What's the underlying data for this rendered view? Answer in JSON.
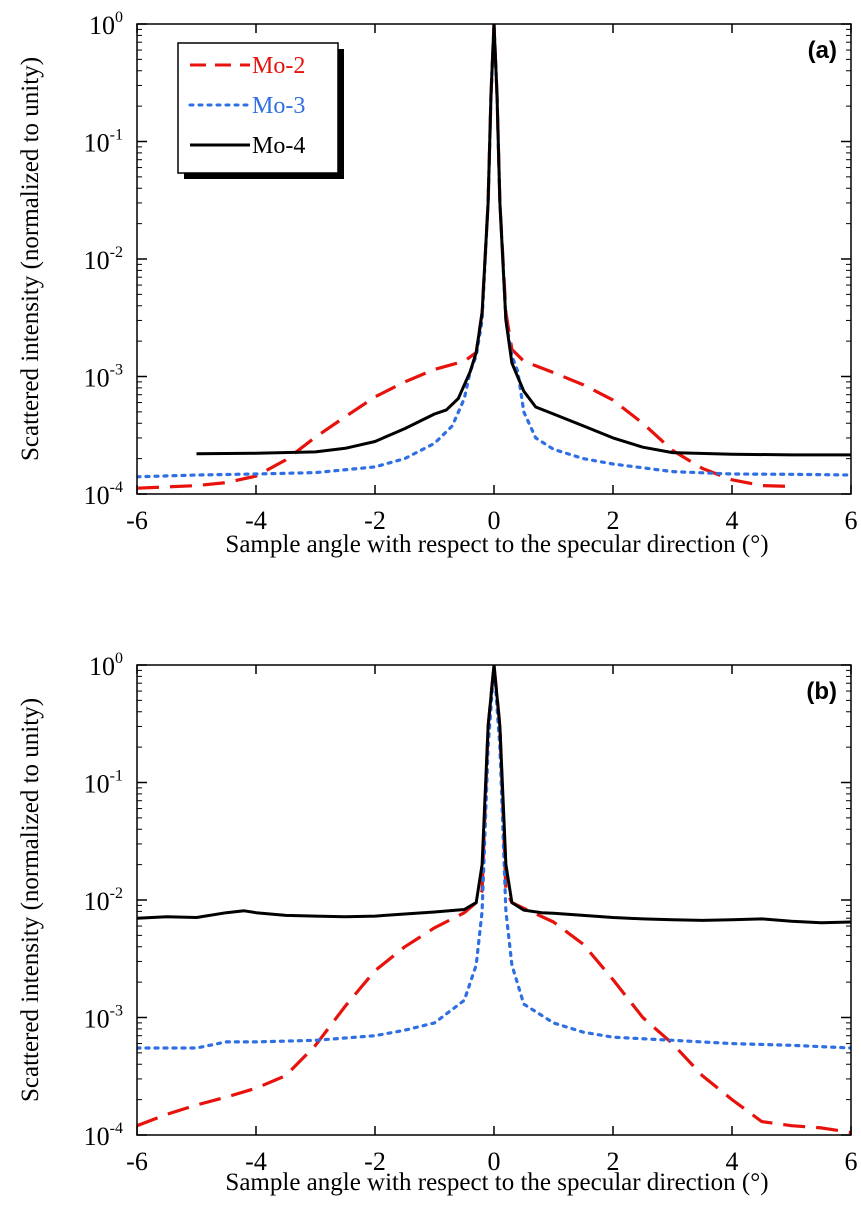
{
  "chart_data": [
    {
      "type": "line",
      "panel_label": "(a)",
      "xlabel": "Sample angle with respect to the specular direction (°)",
      "ylabel": "Scattered intensity (normalized to unity)",
      "xlim": [
        -6,
        6
      ],
      "ylim": [
        0.0001,
        1
      ],
      "yscale": "log",
      "x_ticks": [
        -6,
        -4,
        -2,
        0,
        2,
        4,
        6
      ],
      "y_ticks": [
        {
          "value": 1,
          "base": "10",
          "exp": "0"
        },
        {
          "value": 0.1,
          "base": "10",
          "exp": "-1"
        },
        {
          "value": 0.01,
          "base": "10",
          "exp": "-2"
        },
        {
          "value": 0.001,
          "base": "10",
          "exp": "-3"
        },
        {
          "value": 0.0001,
          "base": "10",
          "exp": "-4"
        }
      ],
      "grid": false,
      "legend_position": "top-left",
      "series": [
        {
          "name": "Mo-2",
          "color": "#e8120c",
          "style": "dashed",
          "points": [
            [
              -6,
              0.000112
            ],
            [
              -5,
              0.000118
            ],
            [
              -4.5,
              0.000125
            ],
            [
              -4,
              0.000142
            ],
            [
              -3.5,
              0.000195
            ],
            [
              -3,
              0.000305
            ],
            [
              -2.5,
              0.000455
            ],
            [
              -2,
              0.00067
            ],
            [
              -1.5,
              0.0009
            ],
            [
              -1,
              0.00115
            ],
            [
              -0.5,
              0.00135
            ],
            [
              -0.3,
              0.0016
            ],
            [
              -0.2,
              0.0035
            ],
            [
              -0.1,
              0.03
            ],
            [
              -0.05,
              0.25
            ],
            [
              0,
              1
            ],
            [
              0.05,
              0.25
            ],
            [
              0.1,
              0.03
            ],
            [
              0.2,
              0.0035
            ],
            [
              0.3,
              0.0017
            ],
            [
              0.5,
              0.00135
            ],
            [
              1,
              0.00108
            ],
            [
              1.5,
              0.00085
            ],
            [
              2,
              0.00063
            ],
            [
              2.5,
              0.0004
            ],
            [
              3,
              0.000235
            ],
            [
              3.5,
              0.000165
            ],
            [
              4,
              0.000132
            ],
            [
              4.5,
              0.000118
            ],
            [
              5,
              0.000116
            ]
          ]
        },
        {
          "name": "Mo-3",
          "color": "#2f6fe3",
          "style": "dotted",
          "points": [
            [
              -6,
              0.00014
            ],
            [
              -5,
              0.000145
            ],
            [
              -4,
              0.000148
            ],
            [
              -3,
              0.000152
            ],
            [
              -2,
              0.00017
            ],
            [
              -1.5,
              0.0002
            ],
            [
              -1,
              0.00027
            ],
            [
              -0.7,
              0.00038
            ],
            [
              -0.5,
              0.00065
            ],
            [
              -0.4,
              0.0011
            ],
            [
              -0.3,
              0.0015
            ],
            [
              -0.2,
              0.003
            ],
            [
              -0.1,
              0.03
            ],
            [
              -0.05,
              0.25
            ],
            [
              0,
              1
            ],
            [
              0.05,
              0.25
            ],
            [
              0.1,
              0.03
            ],
            [
              0.2,
              0.003
            ],
            [
              0.3,
              0.0015
            ],
            [
              0.4,
              0.0011
            ],
            [
              0.5,
              0.0005
            ],
            [
              0.7,
              0.0003
            ],
            [
              1,
              0.00024
            ],
            [
              1.5,
              0.0002
            ],
            [
              2,
              0.00018
            ],
            [
              3,
              0.000155
            ],
            [
              4,
              0.000148
            ],
            [
              5,
              0.000147
            ],
            [
              6,
              0.000145
            ]
          ]
        },
        {
          "name": "Mo-4",
          "color": "#000000",
          "style": "solid",
          "points": [
            [
              -5,
              0.00022
            ],
            [
              -4,
              0.000222
            ],
            [
              -3,
              0.000228
            ],
            [
              -2.5,
              0.000245
            ],
            [
              -2,
              0.00028
            ],
            [
              -1.5,
              0.00036
            ],
            [
              -1,
              0.00048
            ],
            [
              -0.8,
              0.00052
            ],
            [
              -0.6,
              0.00065
            ],
            [
              -0.4,
              0.0011
            ],
            [
              -0.3,
              0.0016
            ],
            [
              -0.2,
              0.0035
            ],
            [
              -0.1,
              0.03
            ],
            [
              -0.05,
              0.25
            ],
            [
              0,
              1
            ],
            [
              0.05,
              0.25
            ],
            [
              0.1,
              0.03
            ],
            [
              0.2,
              0.003
            ],
            [
              0.3,
              0.0013
            ],
            [
              0.5,
              0.00075
            ],
            [
              0.7,
              0.00055
            ],
            [
              1,
              0.00048
            ],
            [
              1.5,
              0.00038
            ],
            [
              2,
              0.0003
            ],
            [
              2.5,
              0.00025
            ],
            [
              3,
              0.000225
            ],
            [
              4,
              0.000218
            ],
            [
              5,
              0.000215
            ],
            [
              6,
              0.000215
            ]
          ]
        }
      ]
    },
    {
      "type": "line",
      "panel_label": "(b)",
      "xlabel": "Sample angle with respect to the specular direction (°)",
      "ylabel": "Scattered intensity (normalized to unity)",
      "xlim": [
        -6,
        6
      ],
      "ylim": [
        0.0001,
        1
      ],
      "yscale": "log",
      "x_ticks": [
        -6,
        -4,
        -2,
        0,
        2,
        4,
        6
      ],
      "y_ticks": [
        {
          "value": 1,
          "base": "10",
          "exp": "0"
        },
        {
          "value": 0.1,
          "base": "10",
          "exp": "-1"
        },
        {
          "value": 0.01,
          "base": "10",
          "exp": "-2"
        },
        {
          "value": 0.001,
          "base": "10",
          "exp": "-3"
        },
        {
          "value": 0.0001,
          "base": "10",
          "exp": "-4"
        }
      ],
      "grid": false,
      "series": [
        {
          "name": "Mo-2",
          "color": "#e8120c",
          "style": "dashed",
          "points": [
            [
              -6,
              0.00012
            ],
            [
              -5.5,
              0.00015
            ],
            [
              -5,
              0.00018
            ],
            [
              -4.5,
              0.00021
            ],
            [
              -4,
              0.00025
            ],
            [
              -3.5,
              0.00032
            ],
            [
              -3,
              0.00058
            ],
            [
              -2.5,
              0.00125
            ],
            [
              -2,
              0.0025
            ],
            [
              -1.5,
              0.004
            ],
            [
              -1,
              0.0058
            ],
            [
              -0.5,
              0.0078
            ],
            [
              -0.3,
              0.0095
            ],
            [
              -0.2,
              0.012
            ],
            [
              -0.1,
              0.3
            ],
            [
              0,
              1
            ],
            [
              0.1,
              0.3
            ],
            [
              0.2,
              0.012
            ],
            [
              0.3,
              0.0095
            ],
            [
              0.5,
              0.0085
            ],
            [
              1,
              0.0065
            ],
            [
              1.5,
              0.0042
            ],
            [
              2,
              0.0021
            ],
            [
              2.5,
              0.001
            ],
            [
              3,
              0.0006
            ],
            [
              3.5,
              0.00032
            ],
            [
              4,
              0.0002
            ],
            [
              4.5,
              0.00013
            ],
            [
              5,
              0.00012
            ],
            [
              5.5,
              0.000115
            ],
            [
              6,
              0.000105
            ]
          ]
        },
        {
          "name": "Mo-3",
          "color": "#2f6fe3",
          "style": "dotted",
          "points": [
            [
              -6,
              0.00055
            ],
            [
              -5,
              0.00055
            ],
            [
              -4.5,
              0.00062
            ],
            [
              -4,
              0.00062
            ],
            [
              -3,
              0.00064
            ],
            [
              -2,
              0.0007
            ],
            [
              -1.5,
              0.00078
            ],
            [
              -1,
              0.0009
            ],
            [
              -0.5,
              0.0014
            ],
            [
              -0.3,
              0.0028
            ],
            [
              -0.2,
              0.008
            ],
            [
              -0.1,
              0.2
            ],
            [
              0,
              1
            ],
            [
              0.1,
              0.2
            ],
            [
              0.2,
              0.008
            ],
            [
              0.3,
              0.0028
            ],
            [
              0.5,
              0.0013
            ],
            [
              1,
              0.0009
            ],
            [
              1.5,
              0.00075
            ],
            [
              2,
              0.00068
            ],
            [
              3,
              0.00064
            ],
            [
              4,
              0.0006
            ],
            [
              5,
              0.00058
            ],
            [
              6,
              0.00055
            ]
          ]
        },
        {
          "name": "Mo-4",
          "color": "#000000",
          "style": "solid",
          "points": [
            [
              -6,
              0.007
            ],
            [
              -5.5,
              0.0072
            ],
            [
              -5,
              0.0071
            ],
            [
              -4.5,
              0.0078
            ],
            [
              -4.2,
              0.0081
            ],
            [
              -4,
              0.0078
            ],
            [
              -3.5,
              0.0074
            ],
            [
              -3,
              0.0073
            ],
            [
              -2.5,
              0.0072
            ],
            [
              -2,
              0.0073
            ],
            [
              -1.5,
              0.0076
            ],
            [
              -1,
              0.0079
            ],
            [
              -0.5,
              0.0083
            ],
            [
              -0.3,
              0.0095
            ],
            [
              -0.2,
              0.02
            ],
            [
              -0.1,
              0.3
            ],
            [
              0,
              1
            ],
            [
              0.1,
              0.3
            ],
            [
              0.2,
              0.02
            ],
            [
              0.3,
              0.0095
            ],
            [
              0.5,
              0.0082
            ],
            [
              0.8,
              0.0078
            ],
            [
              1,
              0.0077
            ],
            [
              1.5,
              0.0074
            ],
            [
              2,
              0.0071
            ],
            [
              2.5,
              0.0069
            ],
            [
              3,
              0.0068
            ],
            [
              3.5,
              0.0067
            ],
            [
              4,
              0.0068
            ],
            [
              4.5,
              0.0069
            ],
            [
              5,
              0.0066
            ],
            [
              5.5,
              0.0064
            ],
            [
              6,
              0.0065
            ]
          ]
        }
      ]
    }
  ]
}
